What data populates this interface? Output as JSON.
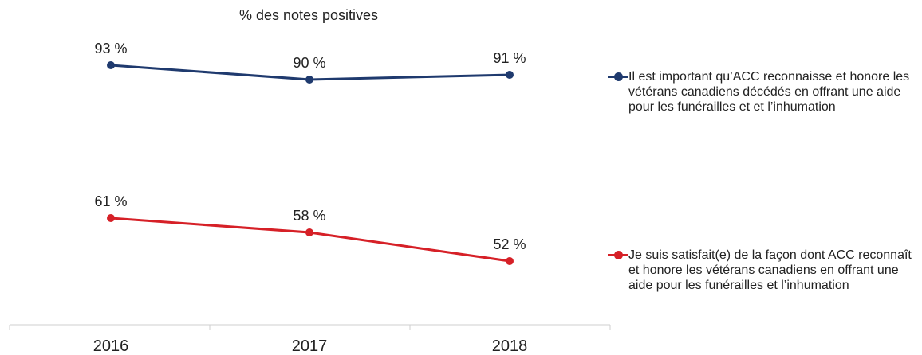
{
  "chart_data": {
    "type": "line",
    "title": "% des notes positives",
    "categories": [
      "2016",
      "2017",
      "2018"
    ],
    "ylim": [
      40,
      100
    ],
    "grid": false,
    "legend_position": "right",
    "series": [
      {
        "name": "Il est important qu’ACC reconnaisse et honore les vétérans canadiens décédés en offrant une aide pour les funérailles et et l’inhumation",
        "values": [
          93,
          90,
          91
        ],
        "labels": [
          "93 %",
          "90 %",
          "91 %"
        ],
        "color": "#1f3a6e"
      },
      {
        "name": "Je suis satisfait(e) de la façon dont ACC reconnaît et honore les vétérans canadiens en offrant une aide pour les funérailles et l’inhumation",
        "values": [
          61,
          58,
          52
        ],
        "labels": [
          "61 %",
          "58 %",
          "52 %"
        ],
        "color": "#d62027"
      }
    ]
  }
}
